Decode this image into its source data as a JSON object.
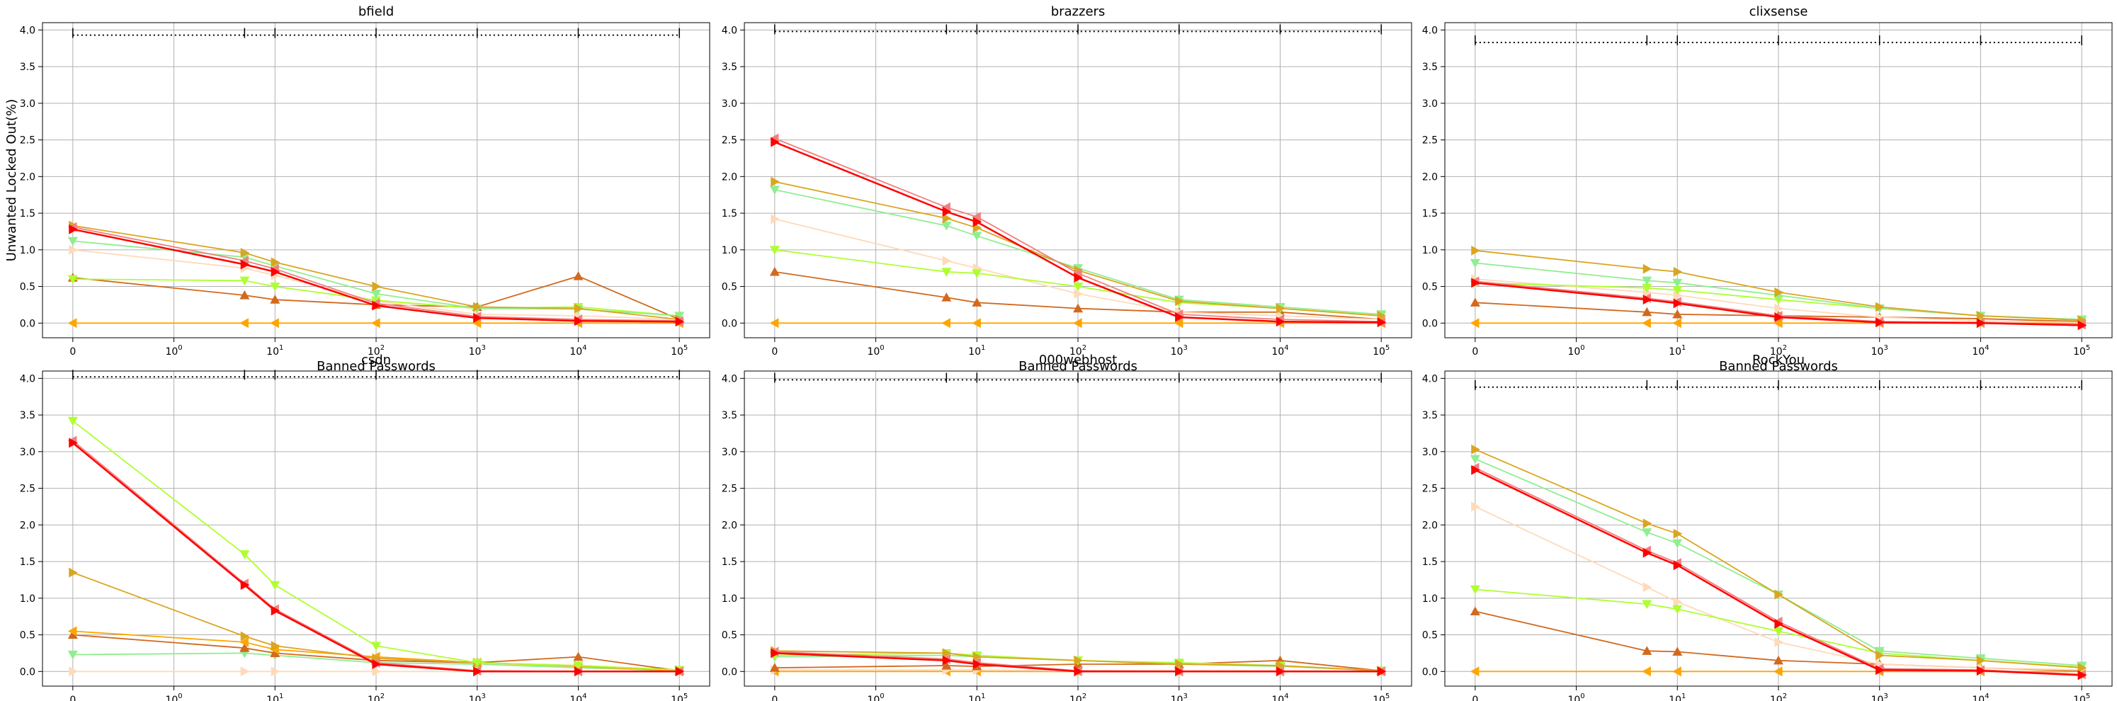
{
  "figure": {
    "ylabel": "Unwanted Locked Out(%)",
    "xlabel": "Banned Passwords"
  },
  "styles": {
    "grid_color": "#b0b0b0",
    "axis_color": "#000000",
    "ref_color": "#000000"
  },
  "chart_data": [
    {
      "type": "line",
      "title": "bfield",
      "xlabel": "Banned Passwords",
      "ylabel": "Unwanted Locked Out(%)",
      "x_scale": "symlog",
      "ylim": [
        -0.2,
        4.1
      ],
      "xticks": [
        "0",
        "10^0",
        "10^1",
        "10^2",
        "10^3",
        "10^4",
        "10^5"
      ],
      "yticks": [
        "0.0",
        "0.5",
        "1.0",
        "1.5",
        "2.0",
        "2.5",
        "3.0",
        "3.5",
        "4.0"
      ],
      "grid": true,
      "x": [
        0,
        5,
        10,
        100,
        1000,
        10000,
        100000
      ],
      "reference_level": 3.93,
      "series": [
        {
          "color": "#ff0000",
          "marker": "triangle-right",
          "values": [
            1.28,
            0.8,
            0.7,
            0.24,
            0.07,
            0.03,
            0.02
          ]
        },
        {
          "color": "#f08080",
          "marker": "triangle-left",
          "values": [
            1.31,
            0.85,
            0.74,
            0.27,
            0.09,
            0.05,
            0.03
          ]
        },
        {
          "color": "#daa520",
          "marker": "triangle-right",
          "values": [
            1.33,
            0.96,
            0.83,
            0.5,
            0.22,
            0.2,
            0.05
          ]
        },
        {
          "color": "#90ee90",
          "marker": "triangle-down",
          "values": [
            1.12,
            0.9,
            0.78,
            0.4,
            0.2,
            0.19,
            0.1
          ]
        },
        {
          "color": "#adff2f",
          "marker": "triangle-down",
          "values": [
            0.6,
            0.58,
            0.5,
            0.31,
            0.2,
            0.22,
            0.1
          ]
        },
        {
          "color": "#ffdab9",
          "marker": "triangle-right",
          "values": [
            1.0,
            0.75,
            0.65,
            0.3,
            0.12,
            0.1,
            0.05
          ]
        },
        {
          "color": "#d2691e",
          "marker": "triangle-up",
          "values": [
            0.62,
            0.38,
            0.32,
            0.25,
            0.22,
            0.64,
            0.05
          ]
        },
        {
          "color": "#ffa500",
          "marker": "triangle-left",
          "values": [
            0.0,
            0.0,
            0.0,
            0.0,
            0.0,
            0.0,
            0.0
          ]
        }
      ]
    },
    {
      "type": "line",
      "title": "brazzers",
      "xlabel": "Banned Passwords",
      "ylabel": "",
      "x_scale": "symlog",
      "ylim": [
        -0.2,
        4.1
      ],
      "xticks": [
        "0",
        "10^0",
        "10^1",
        "10^2",
        "10^3",
        "10^4",
        "10^5"
      ],
      "yticks": [
        "0.0",
        "0.5",
        "1.0",
        "1.5",
        "2.0",
        "2.5",
        "3.0",
        "3.5",
        "4.0"
      ],
      "grid": true,
      "x": [
        0,
        5,
        10,
        100,
        1000,
        10000,
        100000
      ],
      "reference_level": 3.98,
      "series": [
        {
          "color": "#ff0000",
          "marker": "triangle-right",
          "values": [
            2.47,
            1.52,
            1.38,
            0.62,
            0.08,
            0.02,
            0.01
          ]
        },
        {
          "color": "#f08080",
          "marker": "triangle-left",
          "values": [
            2.52,
            1.58,
            1.45,
            0.68,
            0.12,
            0.05,
            0.02
          ]
        },
        {
          "color": "#daa520",
          "marker": "triangle-right",
          "values": [
            1.93,
            1.43,
            1.3,
            0.72,
            0.3,
            0.2,
            0.1
          ]
        },
        {
          "color": "#90ee90",
          "marker": "triangle-down",
          "values": [
            1.82,
            1.33,
            1.19,
            0.75,
            0.32,
            0.22,
            0.12
          ]
        },
        {
          "color": "#adff2f",
          "marker": "triangle-down",
          "values": [
            1.0,
            0.7,
            0.68,
            0.5,
            0.28,
            0.2,
            0.1
          ]
        },
        {
          "color": "#ffdab9",
          "marker": "triangle-right",
          "values": [
            1.42,
            0.85,
            0.75,
            0.4,
            0.15,
            0.1,
            0.05
          ]
        },
        {
          "color": "#d2691e",
          "marker": "triangle-up",
          "values": [
            0.7,
            0.35,
            0.28,
            0.2,
            0.15,
            0.15,
            0.05
          ]
        },
        {
          "color": "#ffa500",
          "marker": "triangle-left",
          "values": [
            0.0,
            0.0,
            0.0,
            0.0,
            0.0,
            0.0,
            0.0
          ]
        }
      ]
    },
    {
      "type": "line",
      "title": "clixsense",
      "xlabel": "Banned Passwords",
      "ylabel": "",
      "x_scale": "symlog",
      "ylim": [
        -0.2,
        4.1
      ],
      "xticks": [
        "0",
        "10^0",
        "10^1",
        "10^2",
        "10^3",
        "10^4",
        "10^5"
      ],
      "yticks": [
        "0.0",
        "0.5",
        "1.0",
        "1.5",
        "2.0",
        "2.5",
        "3.0",
        "3.5",
        "4.0"
      ],
      "grid": true,
      "x": [
        0,
        5,
        10,
        100,
        1000,
        10000,
        100000
      ],
      "reference_level": 3.83,
      "series": [
        {
          "color": "#ff0000",
          "marker": "triangle-right",
          "values": [
            0.55,
            0.32,
            0.27,
            0.08,
            0.01,
            0.0,
            -0.03
          ]
        },
        {
          "color": "#f08080",
          "marker": "triangle-left",
          "values": [
            0.57,
            0.34,
            0.29,
            0.1,
            0.02,
            0.01,
            -0.02
          ]
        },
        {
          "color": "#daa520",
          "marker": "triangle-right",
          "values": [
            0.99,
            0.74,
            0.7,
            0.42,
            0.22,
            0.1,
            0.04
          ]
        },
        {
          "color": "#90ee90",
          "marker": "triangle-down",
          "values": [
            0.82,
            0.58,
            0.55,
            0.38,
            0.2,
            0.1,
            0.05
          ]
        },
        {
          "color": "#adff2f",
          "marker": "triangle-down",
          "values": [
            0.55,
            0.48,
            0.45,
            0.32,
            0.2,
            0.1,
            0.04
          ]
        },
        {
          "color": "#ffdab9",
          "marker": "triangle-right",
          "values": [
            0.6,
            0.42,
            0.38,
            0.2,
            0.08,
            0.03,
            0.01
          ]
        },
        {
          "color": "#d2691e",
          "marker": "triangle-up",
          "values": [
            0.28,
            0.15,
            0.12,
            0.1,
            0.08,
            0.06,
            0.02
          ]
        },
        {
          "color": "#ffa500",
          "marker": "triangle-left",
          "values": [
            0.0,
            0.0,
            0.0,
            0.0,
            0.0,
            0.0,
            0.0
          ]
        }
      ]
    },
    {
      "type": "line",
      "title": "csdn",
      "xlabel": "Banned Passwords",
      "ylabel": "",
      "x_scale": "symlog",
      "ylim": [
        -0.2,
        4.1
      ],
      "xticks": [
        "0",
        "10^0",
        "10^1",
        "10^2",
        "10^3",
        "10^4",
        "10^5"
      ],
      "yticks": [
        "0.0",
        "0.5",
        "1.0",
        "1.5",
        "2.0",
        "2.5",
        "3.0",
        "3.5",
        "4.0"
      ],
      "grid": true,
      "x": [
        0,
        5,
        10,
        100,
        1000,
        10000,
        100000
      ],
      "reference_level": 4.02,
      "series": [
        {
          "color": "#ff0000",
          "marker": "triangle-right",
          "values": [
            3.12,
            1.18,
            0.83,
            0.1,
            0.0,
            0.0,
            0.0
          ]
        },
        {
          "color": "#f08080",
          "marker": "triangle-left",
          "values": [
            3.15,
            1.2,
            0.85,
            0.12,
            0.01,
            0.0,
            0.0
          ]
        },
        {
          "color": "#adff2f",
          "marker": "triangle-down",
          "values": [
            3.42,
            1.6,
            1.18,
            0.35,
            0.12,
            0.08,
            0.02
          ]
        },
        {
          "color": "#daa520",
          "marker": "triangle-right",
          "values": [
            1.35,
            0.48,
            0.35,
            0.18,
            0.12,
            0.08,
            0.02
          ]
        },
        {
          "color": "#ffa500",
          "marker": "triangle-left",
          "values": [
            0.55,
            0.4,
            0.3,
            0.2,
            0.12,
            0.07,
            0.01
          ]
        },
        {
          "color": "#d2691e",
          "marker": "triangle-up",
          "values": [
            0.5,
            0.32,
            0.25,
            0.15,
            0.12,
            0.2,
            0.01
          ]
        },
        {
          "color": "#90ee90",
          "marker": "triangle-down",
          "values": [
            0.23,
            0.25,
            0.22,
            0.12,
            0.1,
            0.05,
            0.01
          ]
        },
        {
          "color": "#ffdab9",
          "marker": "triangle-right",
          "values": [
            0.0,
            0.0,
            0.0,
            0.0,
            0.0,
            0.0,
            0.0
          ]
        }
      ]
    },
    {
      "type": "line",
      "title": "000webhost",
      "xlabel": "Banned Passwords",
      "ylabel": "",
      "x_scale": "symlog",
      "ylim": [
        -0.2,
        4.1
      ],
      "xticks": [
        "0",
        "10^0",
        "10^1",
        "10^2",
        "10^3",
        "10^4",
        "10^5"
      ],
      "yticks": [
        "0.0",
        "0.5",
        "1.0",
        "1.5",
        "2.0",
        "2.5",
        "3.0",
        "3.5",
        "4.0"
      ],
      "grid": true,
      "x": [
        0,
        5,
        10,
        100,
        1000,
        10000,
        100000
      ],
      "reference_level": 3.98,
      "series": [
        {
          "color": "#ff0000",
          "marker": "triangle-right",
          "values": [
            0.25,
            0.15,
            0.1,
            0.0,
            0.0,
            0.0,
            0.0
          ]
        },
        {
          "color": "#f08080",
          "marker": "triangle-left",
          "values": [
            0.27,
            0.17,
            0.12,
            0.01,
            0.0,
            0.0,
            0.0
          ]
        },
        {
          "color": "#daa520",
          "marker": "triangle-right",
          "values": [
            0.28,
            0.25,
            0.2,
            0.15,
            0.1,
            0.08,
            0.01
          ]
        },
        {
          "color": "#adff2f",
          "marker": "triangle-down",
          "values": [
            0.22,
            0.25,
            0.22,
            0.15,
            0.12,
            0.08,
            0.01
          ]
        },
        {
          "color": "#90ee90",
          "marker": "triangle-down",
          "values": [
            0.2,
            0.22,
            0.2,
            0.15,
            0.1,
            0.07,
            0.01
          ]
        },
        {
          "color": "#d2691e",
          "marker": "triangle-up",
          "values": [
            0.05,
            0.08,
            0.07,
            0.1,
            0.1,
            0.15,
            0.01
          ]
        },
        {
          "color": "#ffdab9",
          "marker": "triangle-right",
          "values": [
            0.02,
            0.02,
            0.02,
            0.01,
            0.01,
            0.01,
            0.0
          ]
        },
        {
          "color": "#ffa500",
          "marker": "triangle-left",
          "values": [
            0.0,
            0.0,
            0.0,
            0.0,
            0.0,
            0.0,
            0.0
          ]
        }
      ]
    },
    {
      "type": "line",
      "title": "RockYou",
      "xlabel": "Banned Passwords",
      "ylabel": "",
      "x_scale": "symlog",
      "ylim": [
        -0.2,
        4.1
      ],
      "xticks": [
        "0",
        "10^0",
        "10^1",
        "10^2",
        "10^3",
        "10^4",
        "10^5"
      ],
      "yticks": [
        "0.0",
        "0.5",
        "1.0",
        "1.5",
        "2.0",
        "2.5",
        "3.0",
        "3.5",
        "4.0"
      ],
      "grid": true,
      "x": [
        0,
        5,
        10,
        100,
        1000,
        10000,
        100000
      ],
      "reference_level": 3.88,
      "series": [
        {
          "color": "#ff0000",
          "marker": "triangle-right",
          "values": [
            2.75,
            1.62,
            1.45,
            0.65,
            0.02,
            0.01,
            -0.05
          ]
        },
        {
          "color": "#f08080",
          "marker": "triangle-left",
          "values": [
            2.78,
            1.65,
            1.48,
            0.68,
            0.04,
            0.02,
            -0.04
          ]
        },
        {
          "color": "#daa520",
          "marker": "triangle-right",
          "values": [
            3.03,
            2.02,
            1.88,
            1.05,
            0.22,
            0.15,
            0.05
          ]
        },
        {
          "color": "#90ee90",
          "marker": "triangle-down",
          "values": [
            2.9,
            1.9,
            1.75,
            1.05,
            0.28,
            0.18,
            0.08
          ]
        },
        {
          "color": "#adff2f",
          "marker": "triangle-down",
          "values": [
            1.12,
            0.92,
            0.85,
            0.55,
            0.25,
            0.15,
            0.06
          ]
        },
        {
          "color": "#ffdab9",
          "marker": "triangle-right",
          "values": [
            2.25,
            1.15,
            0.95,
            0.4,
            0.1,
            0.05,
            0.02
          ]
        },
        {
          "color": "#d2691e",
          "marker": "triangle-up",
          "values": [
            0.82,
            0.28,
            0.27,
            0.15,
            0.1,
            0.05,
            0.01
          ]
        },
        {
          "color": "#ffa500",
          "marker": "triangle-left",
          "values": [
            0.0,
            0.0,
            0.0,
            0.0,
            0.0,
            0.0,
            0.0
          ]
        }
      ]
    }
  ]
}
